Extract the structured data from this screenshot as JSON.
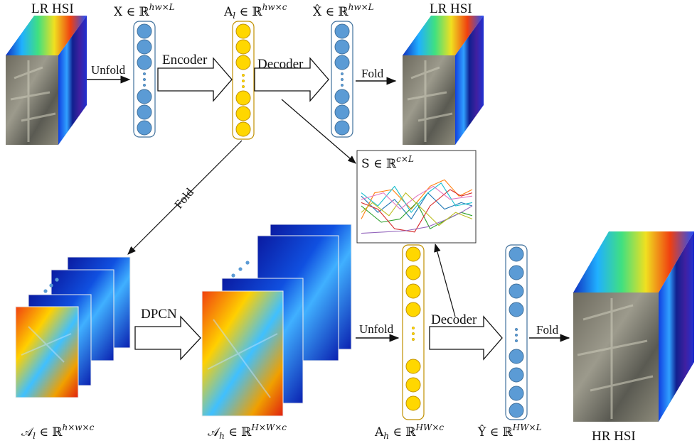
{
  "labels": {
    "lr_hsi_left": "LR HSI",
    "lr_hsi_right": "LR HSI",
    "hr_hsi": "HR HSI",
    "encoder": "Encoder",
    "decoder_top": "Decoder",
    "decoder_bottom": "Decoder",
    "unfold_top": "Unfold",
    "unfold_bottom": "Unfold",
    "fold_top": "Fold",
    "fold_diag": "Fold",
    "fold_bottom": "Fold",
    "dpcn": "DPCN"
  },
  "math": {
    "X": "X ∈ ℝ",
    "X_sup": "hw×L",
    "Al": "A",
    "Al_sub": "l",
    "Al_rest": " ∈ ℝ",
    "Al_sup": "hw×c",
    "Xhat": "X̂ ∈ ℝ",
    "Xhat_sup": "hw×L",
    "S": "S ∈ ℝ",
    "S_sup": "c×L",
    "calAl": "𝒜",
    "calAl_sub": "l",
    "calAl_rest": " ∈ ℝ",
    "calAl_sup": "h×w×c",
    "calAh": "𝒜",
    "calAh_sub": "h",
    "calAh_rest": " ∈ ℝ",
    "calAh_sup": "H×W×c",
    "Ah": "A",
    "Ah_sub": "h",
    "Ah_rest": " ∈ ℝ",
    "Ah_sup": "HW×c",
    "Yhat": "Ŷ ∈ ℝ",
    "Yhat_sup": "HW×L"
  },
  "colors": {
    "blue_node": "#5b9bd5",
    "yellow_node": "#ffd700",
    "column_border_blue": "#41719c",
    "column_border_yellow": "#c09000",
    "spectral_lines": [
      "#1f77b4",
      "#ff7f0e",
      "#2ca02c",
      "#d62728",
      "#9467bd",
      "#17becf",
      "#bcbd22",
      "#e377c2"
    ]
  }
}
